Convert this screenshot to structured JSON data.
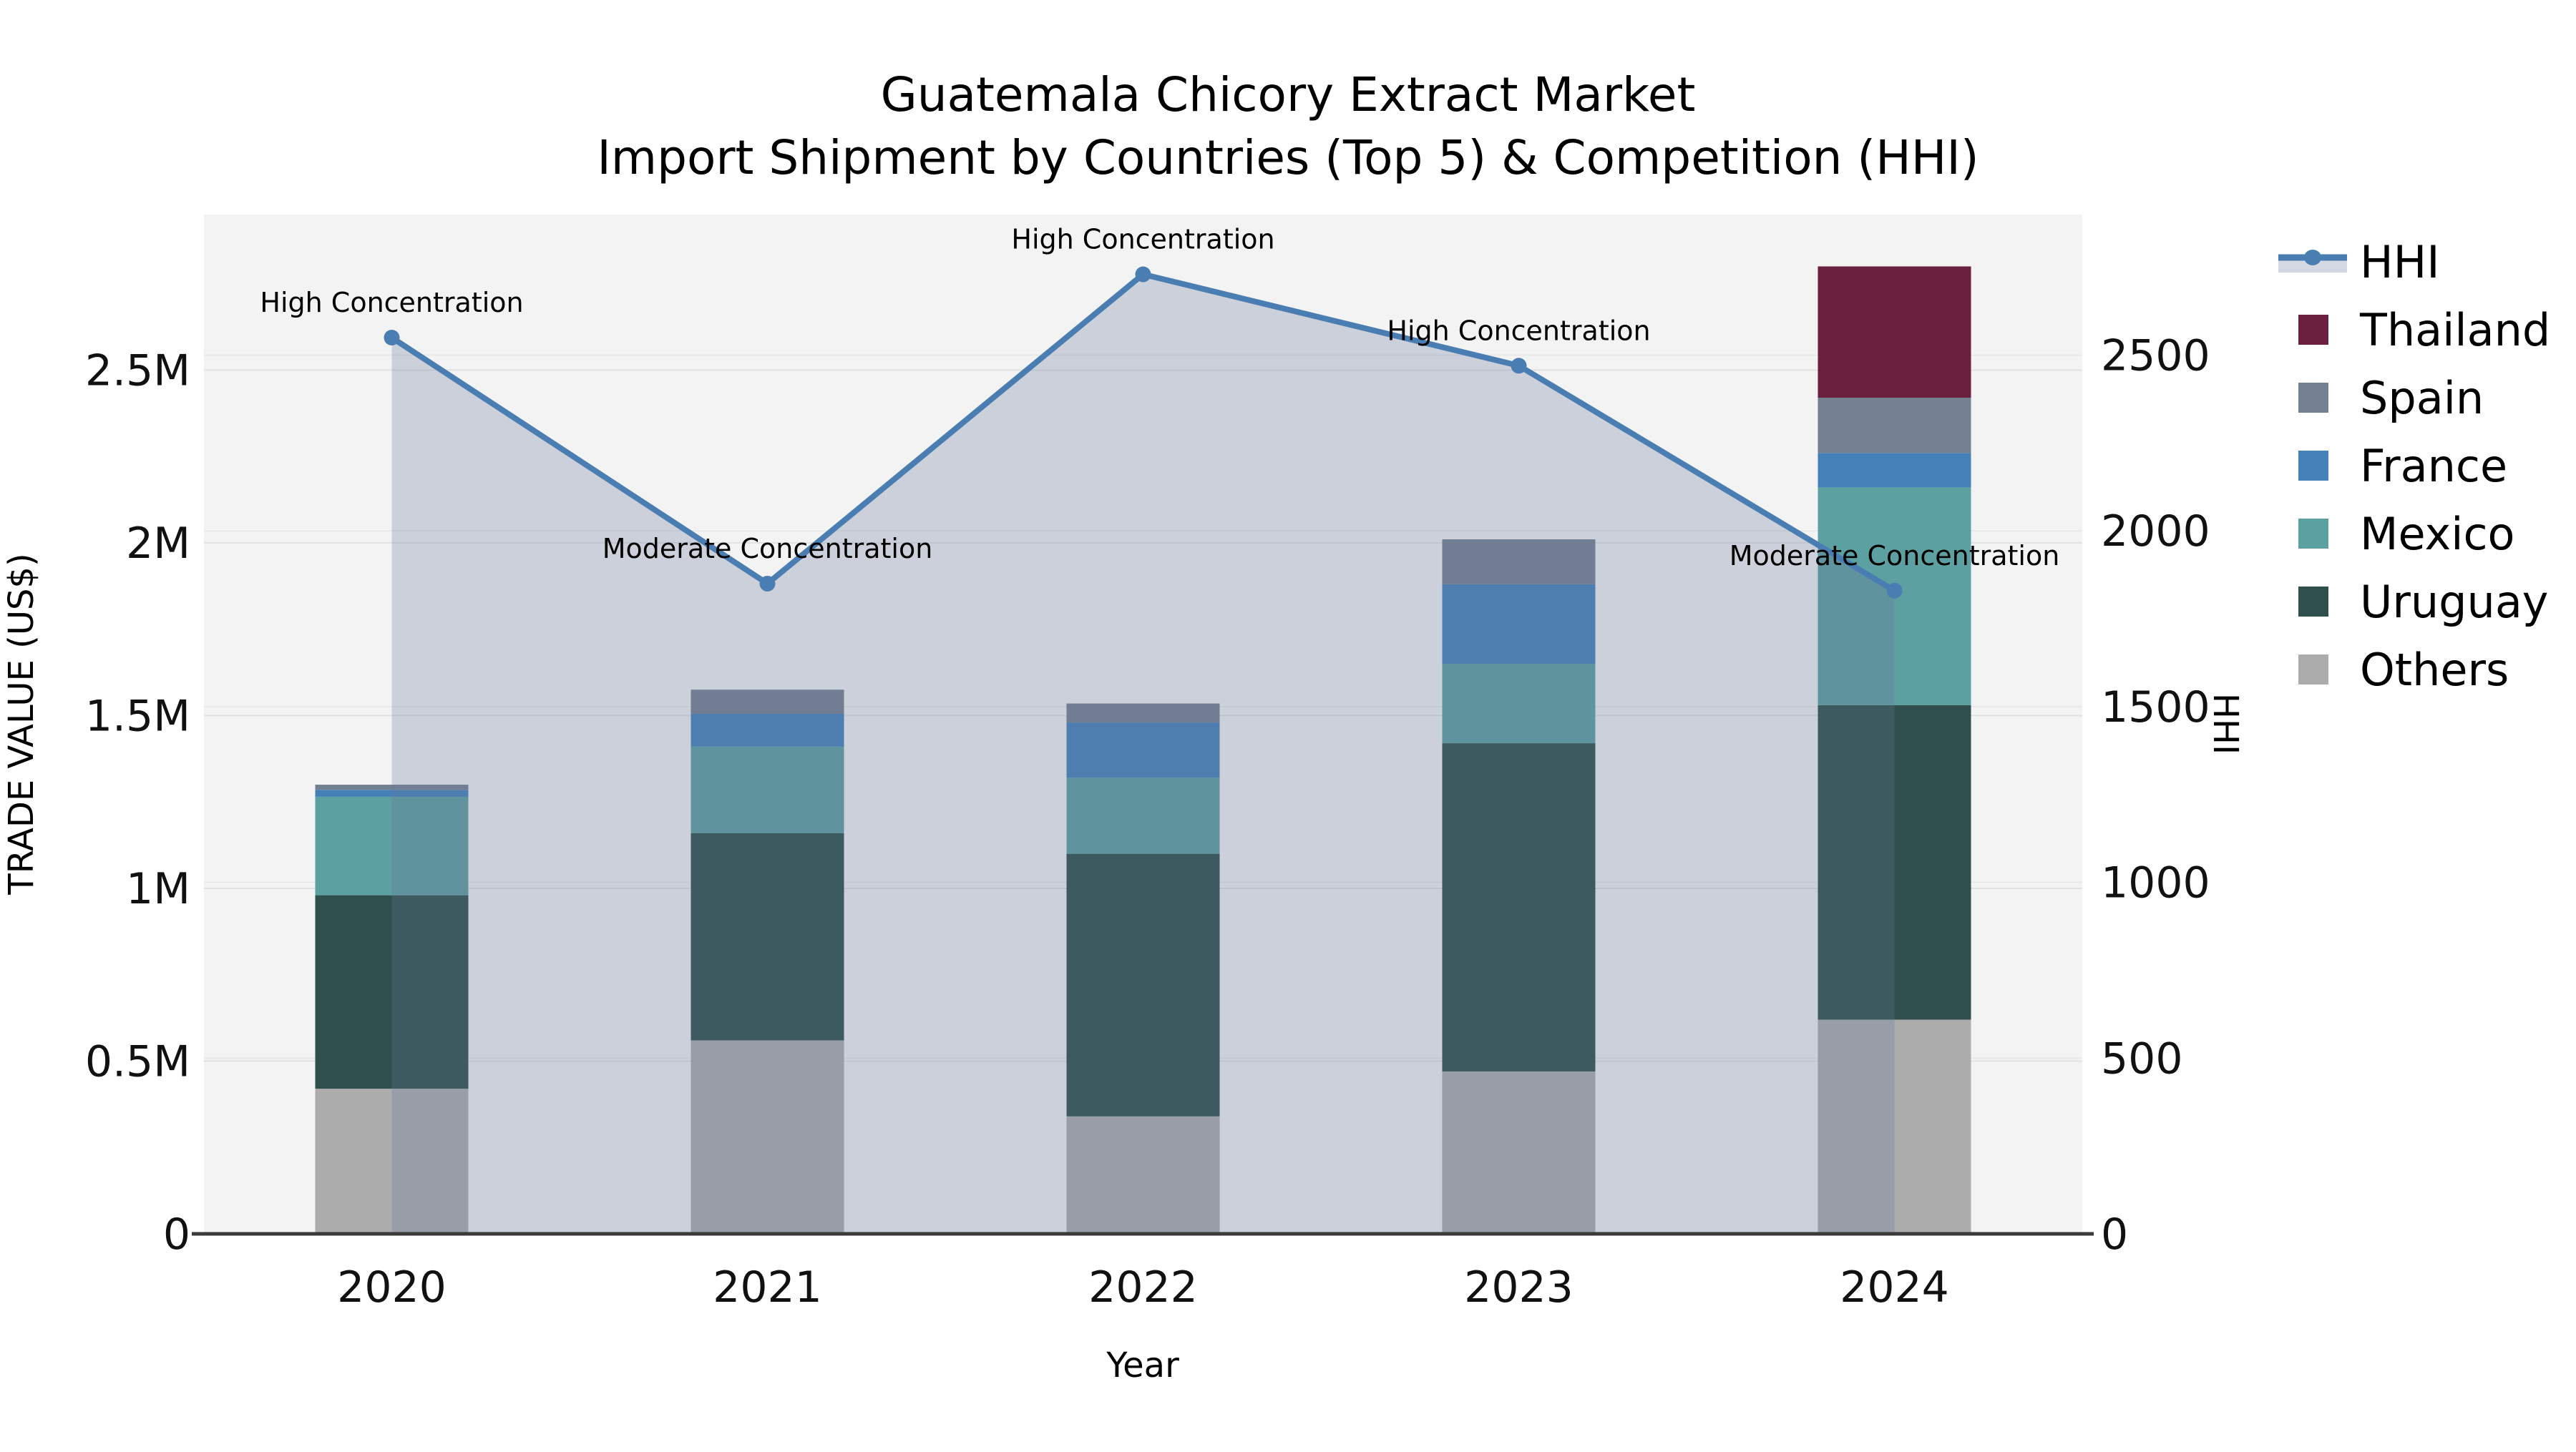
{
  "figure": {
    "title_line1": "Guatemala Chicory Extract Market",
    "title_line2": "Import Shipment by Countries (Top 5) & Competition (HHI)"
  },
  "chart_data": {
    "type": "combo-stacked-bar-with-line",
    "title": "Guatemala Chicory Extract Market — Import Shipment by Countries (Top 5) & Competition (HHI)",
    "categories": [
      "2020",
      "2021",
      "2022",
      "2023",
      "2024"
    ],
    "xlabel": "Year",
    "ylabel_left": "TRADE VALUE (US$)",
    "ylabel_right": "HHI",
    "ylim_left": [
      0,
      2950000
    ],
    "ylim_right": [
      0,
      2900
    ],
    "grid": true,
    "plot_background": "#f3f3f3",
    "y_left_ticks": [
      {
        "value": 0,
        "label": "0"
      },
      {
        "value": 500000,
        "label": "0.5M"
      },
      {
        "value": 1000000,
        "label": "1M"
      },
      {
        "value": 1500000,
        "label": "1.5M"
      },
      {
        "value": 2000000,
        "label": "2M"
      },
      {
        "value": 2500000,
        "label": "2.5M"
      }
    ],
    "y_right_ticks": [
      {
        "value": 0,
        "label": "0"
      },
      {
        "value": 500,
        "label": "500"
      },
      {
        "value": 1000,
        "label": "1000"
      },
      {
        "value": 1500,
        "label": "1500"
      },
      {
        "value": 2000,
        "label": "2000"
      },
      {
        "value": 2500,
        "label": "2500"
      }
    ],
    "series": [
      {
        "name": "Others",
        "color": "#acacac",
        "values": [
          420000,
          560000,
          340000,
          470000,
          620000
        ]
      },
      {
        "name": "Uruguay",
        "color": "#2e4f4b",
        "values": [
          560000,
          600000,
          760000,
          950000,
          910000
        ]
      },
      {
        "name": "Mexico",
        "color": "#5ca0a1",
        "values": [
          285000,
          250000,
          220000,
          230000,
          630000
        ]
      },
      {
        "name": "France",
        "color": "#4481b8",
        "values": [
          20000,
          95000,
          160000,
          230000,
          100000
        ]
      },
      {
        "name": "Spain",
        "color": "#73808f",
        "values": [
          15000,
          70000,
          55000,
          130000,
          160000
        ]
      },
      {
        "name": "Thailand",
        "color": "#6b1f3f",
        "values": [
          0,
          0,
          0,
          0,
          380000
        ]
      }
    ],
    "hhi": {
      "name": "HHI",
      "values": [
        2550,
        1850,
        2730,
        2470,
        1830
      ],
      "line_color": "#4a7eb2",
      "area_fill": "rgba(104,120,155,0.28)",
      "legend_patch_color": "#d4d8e2"
    },
    "annotations": [
      "High Concentration",
      "Moderate Concentration",
      "High Concentration",
      "High Concentration",
      "Moderate Concentration"
    ],
    "legend": [
      "HHI",
      "Thailand",
      "Spain",
      "France",
      "Mexico",
      "Uruguay",
      "Others"
    ],
    "legend_position": "upper right, outside plot",
    "axis_color": "#3a3a3a"
  }
}
